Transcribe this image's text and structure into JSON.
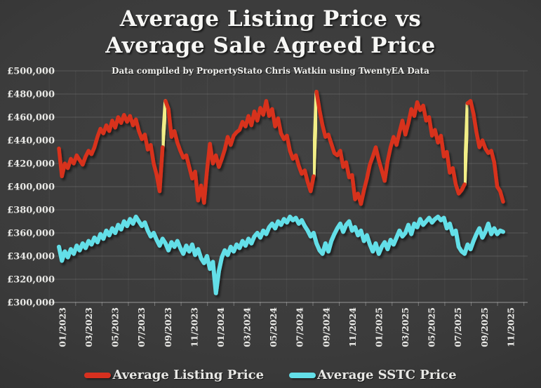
{
  "title": {
    "line1": "Average Listing Price vs",
    "line2": "Average Sale Agreed Price"
  },
  "subtitle": "Data compiled by PropertyStato Chris Watkin using TwentyEA Data",
  "legend": [
    {
      "label": "Average Listing Price",
      "color": "#d7301f"
    },
    {
      "label": "Average SSTC Price",
      "color": "#63dfe8"
    }
  ],
  "colors": {
    "background": "#3b3b3b",
    "listing_line": "#d7301f",
    "sstc_line": "#63dfe8",
    "highlight_jump": "#f2ee87",
    "gridline": "rgba(255,255,255,0.14)",
    "axis_text": "#e9e9e6"
  },
  "chart_data": {
    "type": "line",
    "title": "Average Listing Price vs Average Sale Agreed Price",
    "subtitle": "Data compiled by PropertyStato Chris Watkin using TwentyEA Data",
    "grid": true,
    "legend_position": "bottom",
    "y_axis": {
      "min": 300000,
      "max": 500000,
      "step": 20000,
      "unit": "GBP",
      "tick_labels": [
        "£500,000",
        "£480,000",
        "£460,000",
        "£440,000",
        "£420,000",
        "£400,000",
        "£380,000",
        "£360,000",
        "£340,000",
        "£320,000",
        "£300,000"
      ]
    },
    "x_axis": {
      "start": "01/2023",
      "end": "11/2025",
      "frequency_of_points": "weekly",
      "tick_labels": [
        "01/2023",
        "03/2023",
        "05/2023",
        "07/2023",
        "09/2023",
        "11/2023",
        "01/2024",
        "03/2024",
        "05/2024",
        "07/2024",
        "09/2024",
        "11/2024",
        "01/2025",
        "03/2025",
        "05/2025",
        "07/2025",
        "09/2025",
        "11/2025"
      ]
    },
    "series": [
      {
        "name": "Average Listing Price",
        "color": "#d7301f",
        "values": [
          433000,
          409000,
          420000,
          416000,
          424000,
          420000,
          427000,
          423000,
          419000,
          426000,
          431000,
          428000,
          434000,
          443000,
          450000,
          446000,
          453000,
          448000,
          457000,
          451000,
          460000,
          455000,
          462000,
          456000,
          461000,
          453000,
          458000,
          448000,
          441000,
          445000,
          432000,
          436000,
          420000,
          410000,
          396000,
          434000,
          474000,
          467000,
          443000,
          448000,
          438000,
          431000,
          425000,
          427000,
          417000,
          407000,
          413000,
          388000,
          401000,
          386000,
          414000,
          437000,
          420000,
          427000,
          417000,
          424000,
          432000,
          443000,
          436000,
          444000,
          447000,
          449000,
          456000,
          452000,
          461000,
          453000,
          465000,
          457000,
          468000,
          462000,
          474000,
          461000,
          467000,
          452000,
          459000,
          446000,
          441000,
          444000,
          431000,
          424000,
          427000,
          418000,
          411000,
          414000,
          404000,
          396000,
          409000,
          482000,
          466000,
          453000,
          443000,
          445000,
          437000,
          429000,
          427000,
          431000,
          417000,
          421000,
          408000,
          410000,
          389000,
          394000,
          385000,
          397000,
          407000,
          419000,
          426000,
          434000,
          423000,
          414000,
          405000,
          422000,
          434000,
          443000,
          436000,
          447000,
          457000,
          445000,
          455000,
          467000,
          461000,
          473000,
          466000,
          470000,
          457000,
          460000,
          444000,
          449000,
          438000,
          444000,
          426000,
          430000,
          412000,
          416000,
          402000,
          394000,
          397000,
          402000,
          472000,
          474000,
          463000,
          447000,
          434000,
          440000,
          433000,
          429000,
          431000,
          421000,
          400000,
          396000,
          387000
        ]
      },
      {
        "name": "Average SSTC Price",
        "color": "#63dfe8",
        "values": [
          348000,
          336000,
          344000,
          339000,
          346000,
          342000,
          349000,
          345000,
          351000,
          347000,
          353000,
          350000,
          356000,
          352000,
          359000,
          355000,
          362000,
          358000,
          364000,
          360000,
          367000,
          363000,
          370000,
          366000,
          372000,
          368000,
          374000,
          370000,
          366000,
          369000,
          362000,
          357000,
          360000,
          354000,
          349000,
          355000,
          351000,
          345000,
          352000,
          348000,
          353000,
          347000,
          342000,
          349000,
          344000,
          350000,
          341000,
          346000,
          338000,
          334000,
          340000,
          329000,
          335000,
          308000,
          327000,
          339000,
          345000,
          341000,
          348000,
          344000,
          350000,
          347000,
          353000,
          349000,
          355000,
          351000,
          357000,
          360000,
          356000,
          362000,
          359000,
          365000,
          368000,
          364000,
          370000,
          367000,
          372000,
          369000,
          374000,
          371000,
          373000,
          368000,
          371000,
          366000,
          362000,
          357000,
          360000,
          351000,
          345000,
          342000,
          351000,
          344000,
          353000,
          359000,
          364000,
          368000,
          361000,
          367000,
          370000,
          362000,
          365000,
          358000,
          362000,
          353000,
          358000,
          350000,
          344000,
          351000,
          342000,
          348000,
          352000,
          346000,
          354000,
          350000,
          356000,
          362000,
          357000,
          360000,
          367000,
          359000,
          368000,
          365000,
          372000,
          367000,
          370000,
          373000,
          369000,
          372000,
          374000,
          371000,
          373000,
          364000,
          368000,
          359000,
          362000,
          348000,
          344000,
          342000,
          350000,
          346000,
          353000,
          359000,
          364000,
          356000,
          361000,
          368000,
          359000,
          364000,
          359000,
          362000,
          361000
        ]
      }
    ],
    "highlight_segments": {
      "series": "Average Listing Price",
      "color": "#f2ee87",
      "from_indices": [
        35,
        86,
        137
      ],
      "note": "September surges (2023, 2024, 2025) shown as yellow jump segments"
    }
  }
}
